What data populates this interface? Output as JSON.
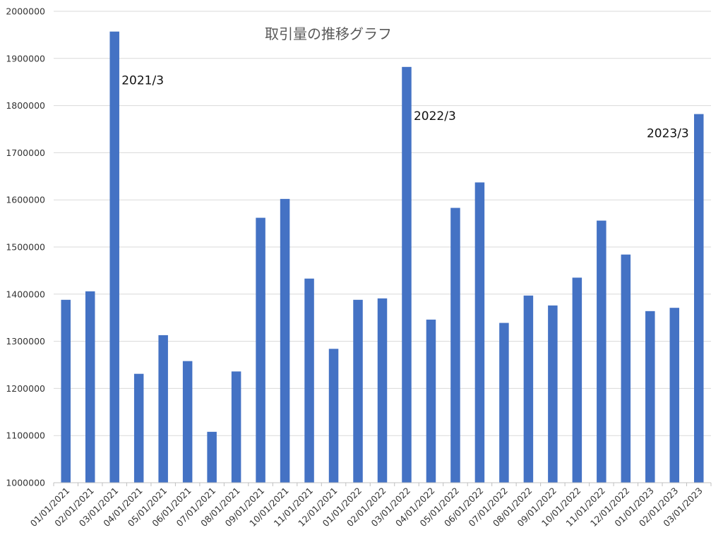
{
  "chart_data": {
    "type": "bar",
    "title": "取引量の推移グラフ",
    "xlabel": "",
    "ylabel": "",
    "ylim": [
      1000000,
      2000000
    ],
    "ytick_step": 100000,
    "grid": true,
    "bar_color": "#4472C4",
    "categories": [
      "01/01/2021",
      "02/01/2021",
      "03/01/2021",
      "04/01/2021",
      "05/01/2021",
      "06/01/2021",
      "07/01/2021",
      "08/01/2021",
      "09/01/2021",
      "10/01/2021",
      "11/01/2021",
      "12/01/2021",
      "01/01/2022",
      "02/01/2022",
      "03/01/2022",
      "04/01/2022",
      "05/01/2022",
      "06/01/2022",
      "07/01/2022",
      "08/01/2022",
      "09/01/2022",
      "10/01/2022",
      "11/01/2022",
      "12/01/2022",
      "01/01/2023",
      "02/01/2023",
      "03/01/2023"
    ],
    "values": [
      1388000,
      1406000,
      1957000,
      1231000,
      1313000,
      1258000,
      1108000,
      1236000,
      1562000,
      1602000,
      1433000,
      1284000,
      1388000,
      1391000,
      1882000,
      1346000,
      1583000,
      1637000,
      1339000,
      1397000,
      1376000,
      1435000,
      1556000,
      1484000,
      1364000,
      1371000,
      1782000
    ],
    "annotations": [
      {
        "text": "2021/3",
        "category": "03/01/2021"
      },
      {
        "text": "2022/3",
        "category": "03/01/2022"
      },
      {
        "text": "2023/3",
        "category": "03/01/2023"
      }
    ]
  }
}
